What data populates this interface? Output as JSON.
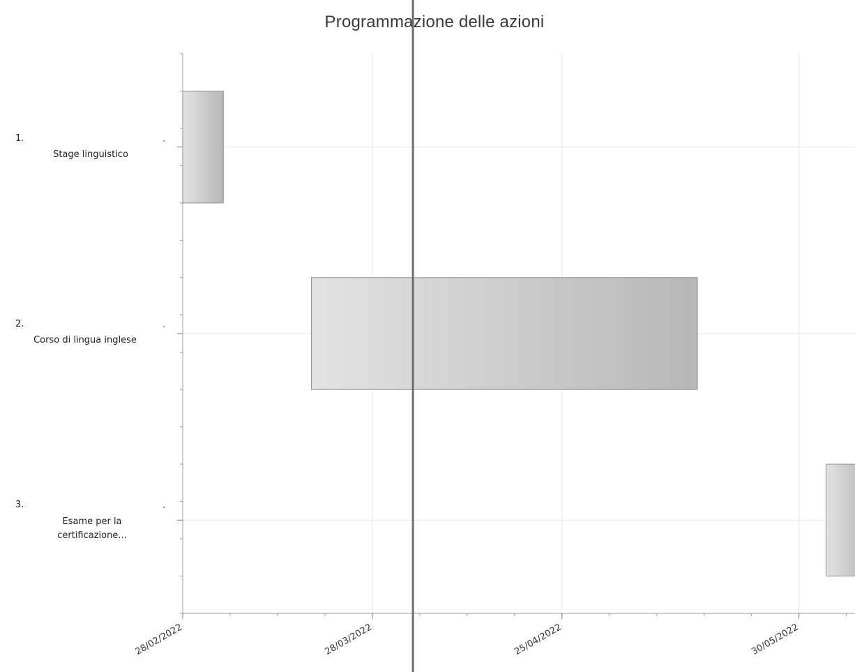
{
  "chart_data": {
    "type": "gantt",
    "title": "Programmazione delle azioni",
    "tasks": [
      {
        "num": "1.",
        "label": "Stage linguistico",
        "start": "2022-02-28",
        "end": "2022-03-06"
      },
      {
        "num": "2.",
        "label": "Corso di lingua inglese",
        "start": "2022-03-19",
        "end": "2022-05-15"
      },
      {
        "num": "3.",
        "label": "Esame per la certificazione...",
        "start": "2022-06-03",
        "end": "2022-06-09"
      }
    ],
    "x_ticks": [
      "28/02/2022",
      "28/03/2022",
      "25/04/2022",
      "30/05/2022"
    ],
    "x_tick_dates": [
      "2022-02-28",
      "2022-03-28",
      "2022-04-25",
      "2022-05-30"
    ],
    "x_range": [
      "2022-02-28",
      "2022-07-01"
    ],
    "current_date_marker": "2022-04-03",
    "grid": true
  }
}
